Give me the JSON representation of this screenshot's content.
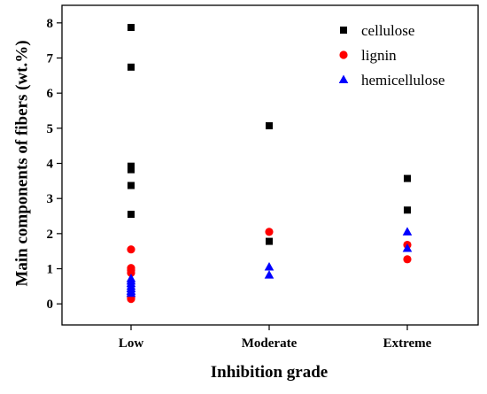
{
  "chart_data": {
    "type": "scatter",
    "xlabel": "Inhibition grade",
    "ylabel": "Main components of fibers (wt.%)",
    "categories": [
      "Low",
      "Moderate",
      "Extreme"
    ],
    "ylim": [
      -0.6,
      8.5
    ],
    "yticks": [
      "0",
      "1",
      "2",
      "3",
      "4",
      "5",
      "6",
      "7",
      "8"
    ],
    "legend_position": "top-right",
    "series": [
      {
        "name": "cellulose",
        "marker": "square",
        "color": "#000000",
        "points": [
          {
            "x": "Low",
            "y": 7.87
          },
          {
            "x": "Low",
            "y": 6.74
          },
          {
            "x": "Low",
            "y": 3.92
          },
          {
            "x": "Low",
            "y": 3.82
          },
          {
            "x": "Low",
            "y": 3.37
          },
          {
            "x": "Low",
            "y": 2.55
          },
          {
            "x": "Moderate",
            "y": 5.07
          },
          {
            "x": "Moderate",
            "y": 1.78
          },
          {
            "x": "Extreme",
            "y": 3.57
          },
          {
            "x": "Extreme",
            "y": 2.67
          }
        ]
      },
      {
        "name": "lignin",
        "marker": "circle",
        "color": "#ff0000",
        "points": [
          {
            "x": "Low",
            "y": 1.55
          },
          {
            "x": "Low",
            "y": 1.02
          },
          {
            "x": "Low",
            "y": 0.96
          },
          {
            "x": "Low",
            "y": 0.88
          },
          {
            "x": "Low",
            "y": 0.2
          },
          {
            "x": "Low",
            "y": 0.14
          },
          {
            "x": "Moderate",
            "y": 2.05
          },
          {
            "x": "Extreme",
            "y": 1.68
          },
          {
            "x": "Extreme",
            "y": 1.27
          }
        ]
      },
      {
        "name": "hemicellulose",
        "marker": "triangle",
        "color": "#0000ff",
        "points": [
          {
            "x": "Low",
            "y": 0.72
          },
          {
            "x": "Low",
            "y": 0.65
          },
          {
            "x": "Low",
            "y": 0.58
          },
          {
            "x": "Low",
            "y": 0.5
          },
          {
            "x": "Low",
            "y": 0.43
          },
          {
            "x": "Low",
            "y": 0.36
          },
          {
            "x": "Low",
            "y": 0.3
          },
          {
            "x": "Moderate",
            "y": 1.05
          },
          {
            "x": "Moderate",
            "y": 0.82
          },
          {
            "x": "Extreme",
            "y": 2.05
          },
          {
            "x": "Extreme",
            "y": 1.58
          }
        ]
      }
    ]
  }
}
